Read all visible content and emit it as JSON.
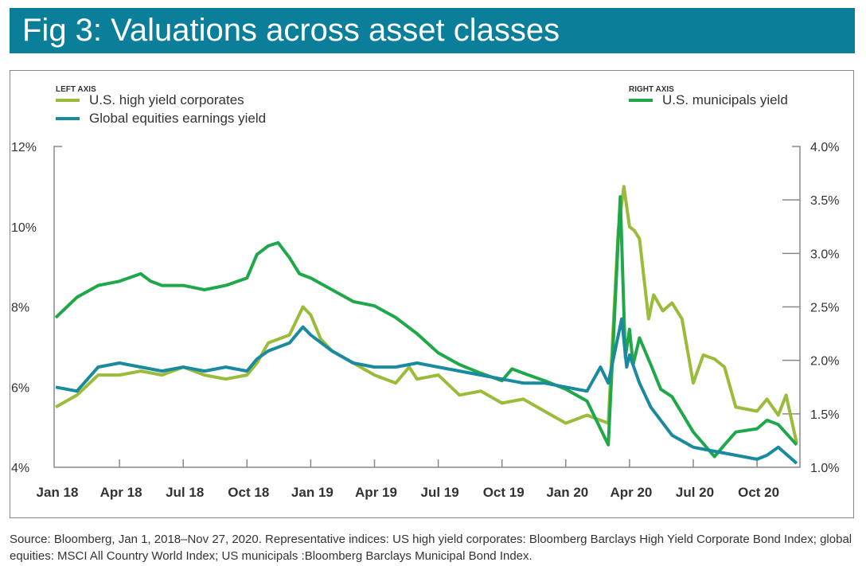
{
  "header": {
    "title": "Fig 3: Valuations across asset classes"
  },
  "source": "Source: Bloomberg, Jan 1, 2018–Nov 27, 2020. Representative indices: US high yield corporates: Bloomberg Barclays High Yield Corporate Bond Index; global equities: MSCI All Country World Index; US municipals :Bloomberg Barclays Municipal Bond Index.",
  "chart_data": {
    "type": "line",
    "legend": {
      "left_axis_label": "LEFT AXIS",
      "right_axis_label": "RIGHT AXIS",
      "placement": "top"
    },
    "x_ticks": [
      "Jan 18",
      "Apr 18",
      "Jul 18",
      "Oct 18",
      "Jan 19",
      "Apr 19",
      "Jul 19",
      "Oct 19",
      "Jan 20",
      "Apr 20",
      "Jul 20",
      "Oct 20"
    ],
    "y_left": {
      "range": [
        4,
        12
      ],
      "ticks": [
        "4%",
        "6%",
        "8%",
        "10%",
        "12%"
      ]
    },
    "y_right": {
      "range": [
        1.0,
        4.0
      ],
      "ticks": [
        "1.0%",
        "1.5%",
        "2.0%",
        "2.5%",
        "3.0%",
        "3.5%",
        "4.0%"
      ]
    },
    "grid": false,
    "series": [
      {
        "name": "U.S. high yield corporates",
        "axis": "left",
        "color": "#9bbb3b",
        "x": [
          "2018-01-01",
          "2018-02-01",
          "2018-03-01",
          "2018-04-01",
          "2018-05-01",
          "2018-06-01",
          "2018-07-01",
          "2018-08-01",
          "2018-09-01",
          "2018-10-01",
          "2018-10-15",
          "2018-11-01",
          "2018-12-01",
          "2018-12-20",
          "2019-01-01",
          "2019-01-15",
          "2019-02-01",
          "2019-03-01",
          "2019-04-01",
          "2019-05-01",
          "2019-05-20",
          "2019-06-01",
          "2019-07-01",
          "2019-08-01",
          "2019-09-01",
          "2019-10-01",
          "2019-11-01",
          "2019-12-01",
          "2020-01-01",
          "2020-02-01",
          "2020-03-01",
          "2020-03-15",
          "2020-03-23",
          "2020-04-01",
          "2020-04-08",
          "2020-04-15",
          "2020-04-28",
          "2020-05-05",
          "2020-05-18",
          "2020-06-01",
          "2020-06-15",
          "2020-07-01",
          "2020-07-15",
          "2020-08-01",
          "2020-08-15",
          "2020-09-01",
          "2020-10-01",
          "2020-10-15",
          "2020-11-01",
          "2020-11-12",
          "2020-11-27"
        ],
        "y": [
          5.5,
          5.8,
          6.3,
          6.3,
          6.4,
          6.3,
          6.5,
          6.3,
          6.2,
          6.3,
          6.6,
          7.1,
          7.3,
          8.0,
          7.8,
          7.2,
          6.9,
          6.6,
          6.3,
          6.1,
          6.5,
          6.2,
          6.3,
          5.8,
          5.9,
          5.6,
          5.7,
          5.4,
          5.1,
          5.3,
          5.1,
          9.9,
          11.0,
          10.0,
          9.9,
          9.7,
          7.7,
          8.3,
          7.9,
          8.1,
          7.7,
          6.1,
          6.8,
          6.7,
          6.5,
          5.5,
          5.4,
          5.7,
          5.3,
          5.8,
          4.6
        ]
      },
      {
        "name": "Global equities earnings yield",
        "axis": "left",
        "color": "#1a8a9e",
        "x": [
          "2018-01-01",
          "2018-02-01",
          "2018-03-01",
          "2018-04-01",
          "2018-05-01",
          "2018-06-01",
          "2018-07-01",
          "2018-08-01",
          "2018-09-01",
          "2018-10-01",
          "2018-10-15",
          "2018-11-01",
          "2018-12-01",
          "2018-12-20",
          "2019-01-01",
          "2019-02-01",
          "2019-03-01",
          "2019-04-01",
          "2019-05-01",
          "2019-06-01",
          "2019-07-01",
          "2019-08-01",
          "2019-09-01",
          "2019-10-01",
          "2019-11-01",
          "2019-12-01",
          "2020-01-01",
          "2020-02-01",
          "2020-02-20",
          "2020-03-01",
          "2020-03-20",
          "2020-03-27",
          "2020-04-01",
          "2020-04-15",
          "2020-05-01",
          "2020-06-01",
          "2020-07-01",
          "2020-08-01",
          "2020-09-01",
          "2020-10-01",
          "2020-10-15",
          "2020-11-01",
          "2020-11-27"
        ],
        "y": [
          6.0,
          5.9,
          6.5,
          6.6,
          6.5,
          6.4,
          6.5,
          6.4,
          6.5,
          6.4,
          6.7,
          6.9,
          7.1,
          7.5,
          7.3,
          6.9,
          6.6,
          6.5,
          6.5,
          6.6,
          6.5,
          6.4,
          6.3,
          6.2,
          6.1,
          6.1,
          6.0,
          5.9,
          6.5,
          6.1,
          7.7,
          6.5,
          6.8,
          6.1,
          5.5,
          4.8,
          4.5,
          4.4,
          4.3,
          4.2,
          4.3,
          4.5,
          4.1
        ]
      },
      {
        "name": "U.S. municipals yield",
        "axis": "right",
        "color": "#1ea84a",
        "x": [
          "2018-01-01",
          "2018-02-01",
          "2018-03-01",
          "2018-04-01",
          "2018-05-01",
          "2018-05-15",
          "2018-06-01",
          "2018-07-01",
          "2018-08-01",
          "2018-09-01",
          "2018-10-01",
          "2018-10-15",
          "2018-11-01",
          "2018-11-15",
          "2018-12-01",
          "2018-12-15",
          "2019-01-01",
          "2019-02-01",
          "2019-03-01",
          "2019-04-01",
          "2019-05-01",
          "2019-06-01",
          "2019-07-01",
          "2019-08-01",
          "2019-09-01",
          "2019-10-01",
          "2019-10-15",
          "2019-11-01",
          "2019-12-01",
          "2020-01-01",
          "2020-02-01",
          "2020-03-01",
          "2020-03-18",
          "2020-03-25",
          "2020-03-31",
          "2020-04-06",
          "2020-04-15",
          "2020-05-01",
          "2020-05-15",
          "2020-06-01",
          "2020-07-01",
          "2020-08-01",
          "2020-08-15",
          "2020-09-01",
          "2020-10-01",
          "2020-10-15",
          "2020-11-01",
          "2020-11-27"
        ],
        "y": [
          2.4,
          2.59,
          2.7,
          2.74,
          2.81,
          2.74,
          2.7,
          2.7,
          2.66,
          2.7,
          2.77,
          2.99,
          3.07,
          3.1,
          2.96,
          2.81,
          2.77,
          2.66,
          2.55,
          2.51,
          2.4,
          2.25,
          2.07,
          1.96,
          1.88,
          1.81,
          1.92,
          1.88,
          1.81,
          1.73,
          1.62,
          1.21,
          3.53,
          2.03,
          2.29,
          1.96,
          2.21,
          1.96,
          1.73,
          1.66,
          1.33,
          1.1,
          1.21,
          1.33,
          1.36,
          1.44,
          1.4,
          1.21
        ]
      }
    ]
  }
}
